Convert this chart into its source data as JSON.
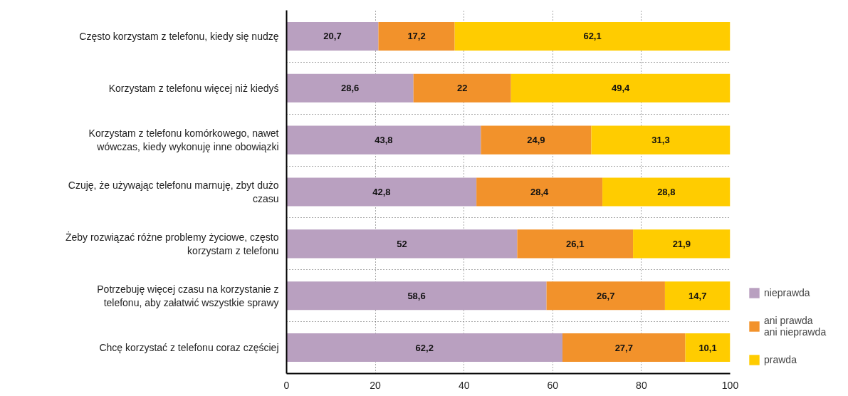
{
  "chart_data": {
    "type": "bar",
    "orientation": "horizontal",
    "stacked": true,
    "categories": [
      "Często korzystam z telefonu, kiedy się nudzę",
      "Korzystam z telefonu więcej niż kiedyś",
      "Korzystam z telefonu komórkowego, nawet wówczas, kiedy wykonuję inne obowiązki",
      "Czuję, że używając telefonu marnuję, zbyt dużo czasu",
      "Żeby rozwiązać różne problemy życiowe, często korzystam z telefonu",
      "Potrzebuję więcej czasu na korzystanie z telefonu, aby załatwić wszystkie sprawy",
      "Chcę korzystać z telefonu coraz częściej"
    ],
    "series": [
      {
        "name": "nieprawda",
        "color": "#b9a0c0",
        "values": [
          20.7,
          28.6,
          43.8,
          42.8,
          52,
          58.6,
          62.2
        ],
        "value_labels": [
          "20,7",
          "28,6",
          "43,8",
          "42,8",
          "52",
          "58,6",
          "62,2"
        ]
      },
      {
        "name": "ani prawda ani nieprawda",
        "color": "#f2922b",
        "values": [
          17.2,
          22,
          24.9,
          28.4,
          26.1,
          26.7,
          27.7
        ],
        "value_labels": [
          "17,2",
          "22",
          "24,9",
          "28,4",
          "26,1",
          "26,7",
          "27,7"
        ]
      },
      {
        "name": "prawda",
        "color": "#ffcc00",
        "values": [
          62.1,
          49.4,
          31.3,
          28.8,
          21.9,
          14.7,
          10.1
        ],
        "value_labels": [
          "62,1",
          "49,4",
          "31,3",
          "28,8",
          "21,9",
          "14,7",
          "10,1"
        ]
      }
    ],
    "xlim": [
      0,
      100
    ],
    "xticks": [
      0,
      20,
      40,
      60,
      80,
      100
    ],
    "grid": true,
    "legend": "bottom right"
  }
}
